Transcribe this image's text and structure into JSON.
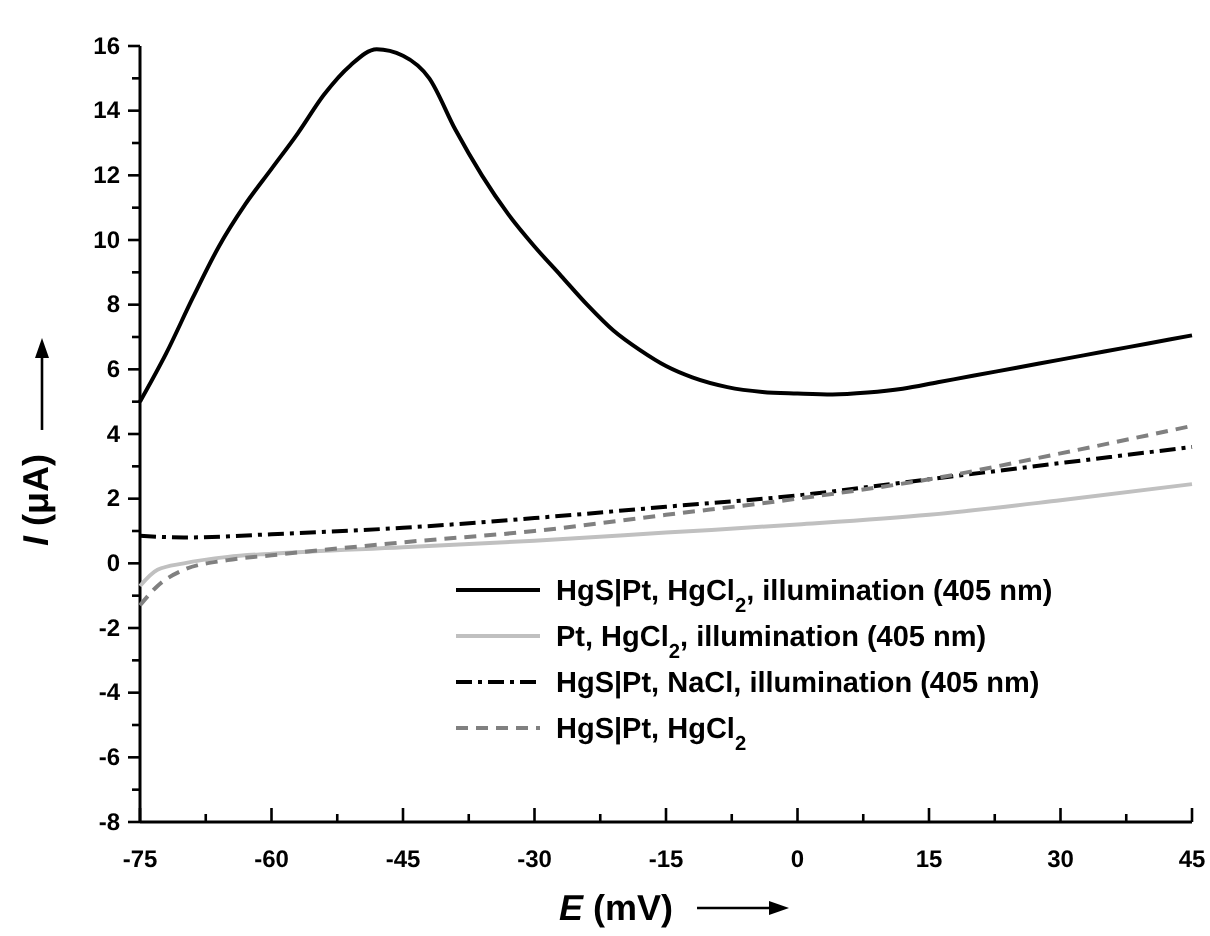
{
  "chart_data": {
    "type": "line",
    "xlabel": "E (mV)",
    "ylabel": "I (μA)",
    "xlim": [
      -75,
      45
    ],
    "ylim": [
      -8,
      16
    ],
    "xticks": [
      -75,
      {
        "value": -67.5,
        "label": null
      },
      -60,
      {
        "value": -52.5,
        "label": null
      },
      -45,
      {
        "value": -37.5,
        "label": null
      },
      -30,
      {
        "value": -22.5,
        "label": null
      },
      -15,
      {
        "value": -7.5,
        "label": null
      },
      0,
      {
        "value": 7.5,
        "label": null
      },
      15,
      {
        "value": 22.5,
        "label": null
      },
      30,
      {
        "value": 37.5,
        "label": null
      },
      45
    ],
    "yticks": [
      -8,
      {
        "value": -7,
        "label": null
      },
      -6,
      {
        "value": -5,
        "label": null
      },
      -4,
      {
        "value": -3,
        "label": null
      },
      -2,
      {
        "value": -1,
        "label": null
      },
      0,
      {
        "value": 1,
        "label": null
      },
      2,
      {
        "value": 3,
        "label": null
      },
      4,
      {
        "value": 5,
        "label": null
      },
      6,
      {
        "value": 7,
        "label": null
      },
      8,
      {
        "value": 9,
        "label": null
      },
      10,
      {
        "value": 11,
        "label": null
      },
      12,
      {
        "value": 13,
        "label": null
      },
      14,
      {
        "value": 15,
        "label": null
      },
      16
    ],
    "grid": false,
    "legend": "bottom right",
    "series": [
      {
        "name": "HgS|Pt, HgCl$_{2}$, illumination (405 nm)",
        "color": "#000000",
        "line_style": "solid",
        "x": [
          -75,
          -72,
          -69,
          -66,
          -63,
          -60,
          -57,
          -54,
          -51,
          -48,
          -45,
          -42,
          -39,
          -36,
          -33,
          -30,
          -27,
          -24,
          -21,
          -18,
          -15,
          -12,
          -8,
          -4,
          0,
          4,
          8,
          12,
          16,
          20,
          25,
          30,
          35,
          40,
          45
        ],
        "values": [
          5.0,
          6.5,
          8.2,
          9.8,
          11.1,
          12.2,
          13.3,
          14.5,
          15.4,
          15.9,
          15.7,
          15.0,
          13.4,
          12.0,
          10.8,
          9.8,
          8.9,
          8.0,
          7.2,
          6.6,
          6.1,
          5.75,
          5.45,
          5.3,
          5.25,
          5.22,
          5.28,
          5.4,
          5.6,
          5.8,
          6.05,
          6.3,
          6.55,
          6.8,
          7.05
        ]
      },
      {
        "name": "Pt, HgCl$_{2}$, illumination (405 nm)",
        "color": "#c0c0c0",
        "line_style": "solid",
        "x": [
          -75,
          -73,
          -70,
          -65,
          -60,
          -45,
          -30,
          -15,
          0,
          15,
          30,
          45
        ],
        "values": [
          -0.7,
          -0.2,
          0.0,
          0.2,
          0.3,
          0.5,
          0.7,
          0.95,
          1.2,
          1.5,
          1.95,
          2.45
        ]
      },
      {
        "name": "HgS|Pt, NaCl, illumination (405 nm)",
        "color": "#000000",
        "line_style": "dashdot",
        "x": [
          -75,
          -70,
          -60,
          -45,
          -30,
          -15,
          0,
          15,
          30,
          45
        ],
        "values": [
          0.85,
          0.8,
          0.9,
          1.1,
          1.4,
          1.75,
          2.1,
          2.6,
          3.1,
          3.6
        ]
      },
      {
        "name": "HgS|Pt, HgCl$_{2}$",
        "color": "#808080",
        "line_style": "dashed",
        "x": [
          -75,
          -73,
          -70,
          -65,
          -60,
          -45,
          -30,
          -15,
          0,
          15,
          30,
          45
        ],
        "values": [
          -1.3,
          -0.7,
          -0.2,
          0.1,
          0.25,
          0.65,
          1.0,
          1.5,
          2.0,
          2.6,
          3.4,
          4.25
        ]
      }
    ]
  }
}
